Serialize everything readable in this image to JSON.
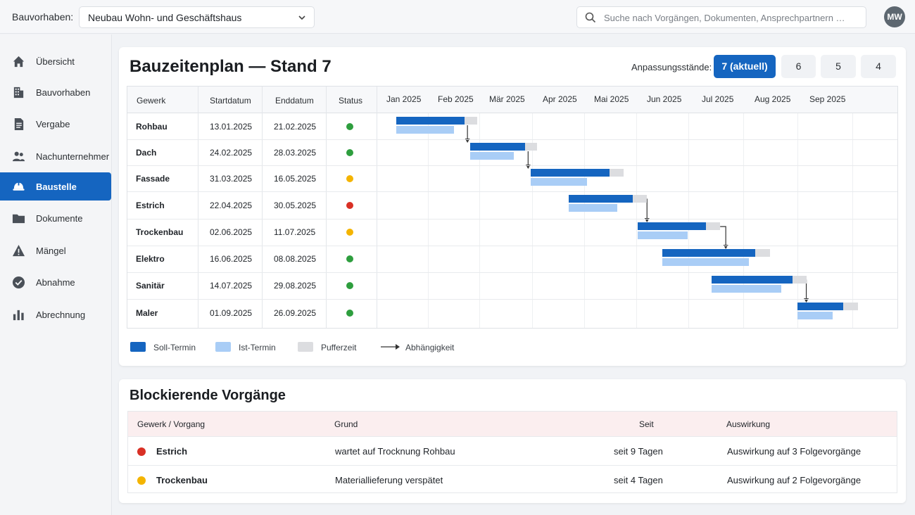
{
  "header": {
    "project_label": "Bauvorhaben:",
    "project_value": "Neubau Wohn- und Geschäftshaus",
    "search_placeholder": "Suche nach Vorgängen, Dokumenten, Ansprechpartnern …",
    "avatar_initials": "MW"
  },
  "sidebar": {
    "items": [
      {
        "label": "Übersicht",
        "icon": "home-icon"
      },
      {
        "label": "Bauvorhaben",
        "icon": "building-icon"
      },
      {
        "label": "Vergabe",
        "icon": "document-icon"
      },
      {
        "label": "Nachunternehmer",
        "icon": "people-icon"
      },
      {
        "label": "Baustelle",
        "icon": "hardhat-icon"
      },
      {
        "label": "Dokumente",
        "icon": "folder-icon"
      },
      {
        "label": "Mängel",
        "icon": "warning-icon"
      },
      {
        "label": "Abnahme",
        "icon": "check-circle-icon"
      },
      {
        "label": "Abrechnung",
        "icon": "bar-chart-icon"
      }
    ],
    "active": "Baustelle"
  },
  "schedule": {
    "title": "Bauzeitenplan — Stand 7",
    "revisions_label": "Anpassungsstände:",
    "revisions": [
      "7 (aktuell)",
      "6",
      "5",
      "4"
    ],
    "columns": [
      "Gewerk",
      "Startdatum",
      "Enddatum",
      "Status"
    ],
    "months": [
      "Jan 2025",
      "Feb 2025",
      "Mär 2025",
      "Apr 2025",
      "Mai 2025",
      "Jun 2025",
      "Jul 2025",
      "Aug 2025",
      "Sep 2025"
    ],
    "rows": [
      {
        "trade": "Rohbau",
        "start": "13.01.2025",
        "end": "21.02.2025",
        "status": "green"
      },
      {
        "trade": "Dach",
        "start": "24.02.2025",
        "end": "28.03.2025",
        "status": "green"
      },
      {
        "trade": "Fassade",
        "start": "31.03.2025",
        "end": "16.05.2025",
        "status": "yellow"
      },
      {
        "trade": "Estrich",
        "start": "22.04.2025",
        "end": "30.05.2025",
        "status": "red"
      },
      {
        "trade": "Trockenbau",
        "start": "02.06.2025",
        "end": "11.07.2025",
        "status": "yellow"
      },
      {
        "trade": "Elektro",
        "start": "16.06.2025",
        "end": "08.08.2025",
        "status": "green"
      },
      {
        "trade": "Sanitär",
        "start": "14.07.2025",
        "end": "29.08.2025",
        "status": "green"
      },
      {
        "trade": "Maler",
        "start": "01.09.2025",
        "end": "26.09.2025",
        "status": "green"
      }
    ],
    "colors": {
      "soll": "#1565c0",
      "ist": "#a9cdf6",
      "puffer": "#dcdde0",
      "green": "#2e9e3e",
      "yellow": "#f4b400",
      "red": "#d93025"
    },
    "legend": [
      "Soll-Termin",
      "Ist-Termin",
      "Pufferzeit",
      "Abhängigkeit"
    ]
  },
  "blocking": {
    "title": "Blockierende Vorgänge",
    "columns": [
      "Gewerk / Vorgang",
      "Grund",
      "Seit",
      "Auswirkung"
    ],
    "rows": [
      {
        "trade": "Estrich",
        "status": "red",
        "reason": "wartet auf Trocknung Rohbau",
        "since": "seit 9 Tagen",
        "impact": "Auswirkung auf 3 Folgevorgänge"
      },
      {
        "trade": "Trockenbau",
        "status": "yellow",
        "reason": "Materiallieferung verspätet",
        "since": "seit 4 Tagen",
        "impact": "Auswirkung auf 2 Folgevorgänge"
      }
    ]
  }
}
